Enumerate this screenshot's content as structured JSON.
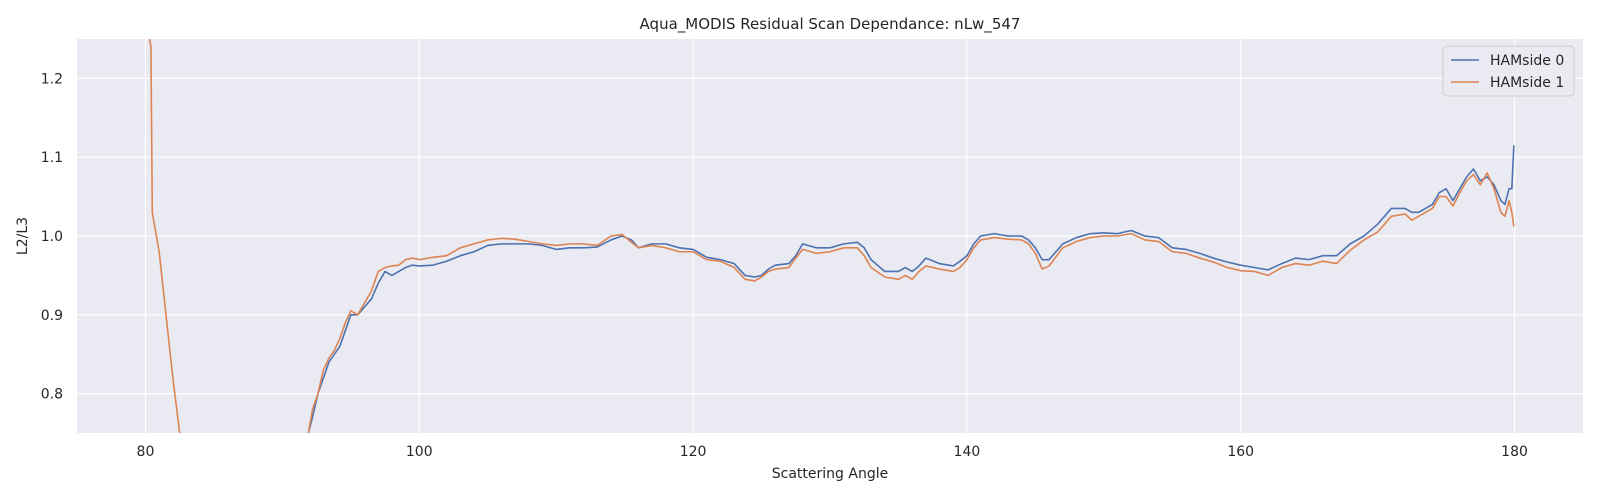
{
  "chart_data": {
    "type": "line",
    "title": "Aqua_MODIS Residual Scan Dependance: nLw_547",
    "xlabel": "Scattering Angle",
    "ylabel": "L2/L3",
    "xlim": [
      75,
      185
    ],
    "ylim": [
      0.75,
      1.25
    ],
    "xticks": [
      80,
      100,
      120,
      140,
      160,
      180
    ],
    "yticks": [
      0.8,
      0.9,
      1.0,
      1.1,
      1.2
    ],
    "xtick_labels": [
      "80",
      "100",
      "120",
      "140",
      "160",
      "180"
    ],
    "ytick_labels": [
      "0.8",
      "0.9",
      "1.0",
      "1.1",
      "1.2"
    ],
    "grid": true,
    "legend_position": "top-right",
    "background_color": "#eaeaf2",
    "grid_color": "#ffffff",
    "series": [
      {
        "name": "HAMside 0",
        "color": "#4c72b0",
        "points": [
          [
            91.9,
            0.75
          ],
          [
            92.2,
            0.77
          ],
          [
            92.6,
            0.8
          ],
          [
            93.0,
            0.82
          ],
          [
            93.4,
            0.84
          ],
          [
            93.8,
            0.85
          ],
          [
            94.2,
            0.86
          ],
          [
            94.6,
            0.88
          ],
          [
            95.0,
            0.9
          ],
          [
            95.5,
            0.9
          ],
          [
            96.0,
            0.91
          ],
          [
            96.5,
            0.92
          ],
          [
            97.0,
            0.94
          ],
          [
            97.5,
            0.955
          ],
          [
            98.0,
            0.95
          ],
          [
            98.5,
            0.955
          ],
          [
            99.0,
            0.96
          ],
          [
            99.5,
            0.963
          ],
          [
            100.0,
            0.962
          ],
          [
            101.0,
            0.963
          ],
          [
            102.0,
            0.968
          ],
          [
            103.0,
            0.975
          ],
          [
            104.0,
            0.98
          ],
          [
            105.0,
            0.988
          ],
          [
            106.0,
            0.99
          ],
          [
            107.0,
            0.99
          ],
          [
            108.0,
            0.99
          ],
          [
            109.0,
            0.988
          ],
          [
            110.0,
            0.983
          ],
          [
            111.0,
            0.985
          ],
          [
            112.0,
            0.985
          ],
          [
            113.0,
            0.986
          ],
          [
            114.0,
            0.995
          ],
          [
            114.8,
            1.0
          ],
          [
            115.5,
            0.995
          ],
          [
            116.0,
            0.985
          ],
          [
            117.0,
            0.99
          ],
          [
            118.0,
            0.99
          ],
          [
            119.0,
            0.985
          ],
          [
            120.0,
            0.983
          ],
          [
            121.0,
            0.973
          ],
          [
            122.0,
            0.97
          ],
          [
            123.0,
            0.965
          ],
          [
            123.8,
            0.95
          ],
          [
            124.5,
            0.948
          ],
          [
            125.0,
            0.95
          ],
          [
            125.5,
            0.958
          ],
          [
            126.0,
            0.963
          ],
          [
            127.0,
            0.965
          ],
          [
            127.5,
            0.975
          ],
          [
            128.0,
            0.99
          ],
          [
            129.0,
            0.985
          ],
          [
            130.0,
            0.985
          ],
          [
            131.0,
            0.99
          ],
          [
            132.0,
            0.992
          ],
          [
            132.5,
            0.985
          ],
          [
            133.0,
            0.97
          ],
          [
            134.0,
            0.955
          ],
          [
            135.0,
            0.955
          ],
          [
            135.5,
            0.96
          ],
          [
            136.0,
            0.955
          ],
          [
            136.5,
            0.962
          ],
          [
            137.0,
            0.972
          ],
          [
            138.0,
            0.965
          ],
          [
            139.0,
            0.962
          ],
          [
            139.5,
            0.968
          ],
          [
            140.0,
            0.975
          ],
          [
            140.5,
            0.99
          ],
          [
            141.0,
            1.0
          ],
          [
            142.0,
            1.003
          ],
          [
            143.0,
            1.0
          ],
          [
            144.0,
            1.0
          ],
          [
            144.5,
            0.995
          ],
          [
            145.0,
            0.985
          ],
          [
            145.5,
            0.97
          ],
          [
            146.0,
            0.97
          ],
          [
            147.0,
            0.99
          ],
          [
            148.0,
            0.998
          ],
          [
            149.0,
            1.003
          ],
          [
            150.0,
            1.004
          ],
          [
            151.0,
            1.003
          ],
          [
            152.0,
            1.007
          ],
          [
            153.0,
            1.0
          ],
          [
            154.0,
            0.998
          ],
          [
            155.0,
            0.985
          ],
          [
            156.0,
            0.983
          ],
          [
            157.0,
            0.978
          ],
          [
            158.0,
            0.972
          ],
          [
            159.0,
            0.967
          ],
          [
            160.0,
            0.963
          ],
          [
            161.0,
            0.96
          ],
          [
            162.0,
            0.957
          ],
          [
            163.0,
            0.965
          ],
          [
            164.0,
            0.972
          ],
          [
            165.0,
            0.97
          ],
          [
            166.0,
            0.975
          ],
          [
            167.0,
            0.975
          ],
          [
            168.0,
            0.99
          ],
          [
            169.0,
            1.0
          ],
          [
            170.0,
            1.015
          ],
          [
            171.0,
            1.035
          ],
          [
            172.0,
            1.035
          ],
          [
            172.5,
            1.03
          ],
          [
            173.0,
            1.03
          ],
          [
            174.0,
            1.04
          ],
          [
            174.5,
            1.055
          ],
          [
            175.0,
            1.06
          ],
          [
            175.5,
            1.045
          ],
          [
            176.0,
            1.06
          ],
          [
            176.5,
            1.075
          ],
          [
            177.0,
            1.085
          ],
          [
            177.5,
            1.07
          ],
          [
            178.0,
            1.075
          ],
          [
            178.5,
            1.065
          ],
          [
            179.0,
            1.045
          ],
          [
            179.3,
            1.04
          ],
          [
            179.6,
            1.06
          ],
          [
            179.8,
            1.06
          ],
          [
            179.95,
            1.115
          ]
        ]
      },
      {
        "name": "HAMside 1",
        "color": "#dd8452",
        "segments": [
          [
            [
              80.3,
              1.25
            ],
            [
              80.4,
              1.24
            ],
            [
              80.5,
              1.03
            ],
            [
              81.0,
              0.98
            ],
            [
              81.5,
              0.9
            ],
            [
              82.0,
              0.82
            ],
            [
              82.5,
              0.75
            ]
          ],
          [
            [
              91.9,
              0.75
            ],
            [
              92.2,
              0.78
            ],
            [
              92.6,
              0.8
            ],
            [
              93.0,
              0.83
            ],
            [
              93.4,
              0.845
            ],
            [
              93.8,
              0.855
            ],
            [
              94.2,
              0.87
            ],
            [
              94.6,
              0.89
            ],
            [
              95.0,
              0.905
            ],
            [
              95.5,
              0.9
            ],
            [
              96.0,
              0.915
            ],
            [
              96.5,
              0.93
            ],
            [
              97.0,
              0.955
            ],
            [
              97.5,
              0.96
            ],
            [
              98.0,
              0.962
            ],
            [
              98.5,
              0.963
            ],
            [
              99.0,
              0.97
            ],
            [
              99.5,
              0.972
            ],
            [
              100.0,
              0.97
            ],
            [
              101.0,
              0.973
            ],
            [
              102.0,
              0.975
            ],
            [
              103.0,
              0.985
            ],
            [
              104.0,
              0.99
            ],
            [
              105.0,
              0.995
            ],
            [
              106.0,
              0.997
            ],
            [
              107.0,
              0.996
            ],
            [
              108.0,
              0.993
            ],
            [
              109.0,
              0.99
            ],
            [
              110.0,
              0.988
            ],
            [
              111.0,
              0.99
            ],
            [
              112.0,
              0.99
            ],
            [
              113.0,
              0.988
            ],
            [
              114.0,
              1.0
            ],
            [
              114.8,
              1.002
            ],
            [
              115.5,
              0.992
            ],
            [
              116.0,
              0.985
            ],
            [
              117.0,
              0.988
            ],
            [
              118.0,
              0.985
            ],
            [
              119.0,
              0.98
            ],
            [
              120.0,
              0.98
            ],
            [
              121.0,
              0.97
            ],
            [
              122.0,
              0.968
            ],
            [
              123.0,
              0.96
            ],
            [
              123.8,
              0.945
            ],
            [
              124.5,
              0.943
            ],
            [
              125.0,
              0.948
            ],
            [
              125.5,
              0.955
            ],
            [
              126.0,
              0.958
            ],
            [
              127.0,
              0.96
            ],
            [
              127.5,
              0.972
            ],
            [
              128.0,
              0.983
            ],
            [
              129.0,
              0.978
            ],
            [
              130.0,
              0.98
            ],
            [
              131.0,
              0.985
            ],
            [
              132.0,
              0.985
            ],
            [
              132.5,
              0.975
            ],
            [
              133.0,
              0.96
            ],
            [
              134.0,
              0.948
            ],
            [
              135.0,
              0.945
            ],
            [
              135.5,
              0.95
            ],
            [
              136.0,
              0.945
            ],
            [
              136.5,
              0.955
            ],
            [
              137.0,
              0.962
            ],
            [
              138.0,
              0.958
            ],
            [
              139.0,
              0.955
            ],
            [
              139.5,
              0.96
            ],
            [
              140.0,
              0.97
            ],
            [
              140.5,
              0.985
            ],
            [
              141.0,
              0.995
            ],
            [
              142.0,
              0.998
            ],
            [
              143.0,
              0.996
            ],
            [
              144.0,
              0.995
            ],
            [
              144.5,
              0.99
            ],
            [
              145.0,
              0.978
            ],
            [
              145.5,
              0.958
            ],
            [
              146.0,
              0.962
            ],
            [
              147.0,
              0.985
            ],
            [
              148.0,
              0.993
            ],
            [
              149.0,
              0.998
            ],
            [
              150.0,
              1.0
            ],
            [
              151.0,
              1.0
            ],
            [
              152.0,
              1.003
            ],
            [
              153.0,
              0.995
            ],
            [
              154.0,
              0.993
            ],
            [
              155.0,
              0.98
            ],
            [
              156.0,
              0.978
            ],
            [
              157.0,
              0.972
            ],
            [
              158.0,
              0.967
            ],
            [
              159.0,
              0.96
            ],
            [
              160.0,
              0.956
            ],
            [
              161.0,
              0.955
            ],
            [
              162.0,
              0.95
            ],
            [
              163.0,
              0.96
            ],
            [
              164.0,
              0.965
            ],
            [
              165.0,
              0.963
            ],
            [
              166.0,
              0.968
            ],
            [
              167.0,
              0.965
            ],
            [
              168.0,
              0.982
            ],
            [
              169.0,
              0.995
            ],
            [
              170.0,
              1.005
            ],
            [
              171.0,
              1.025
            ],
            [
              172.0,
              1.028
            ],
            [
              172.5,
              1.02
            ],
            [
              173.0,
              1.025
            ],
            [
              174.0,
              1.035
            ],
            [
              174.5,
              1.05
            ],
            [
              175.0,
              1.05
            ],
            [
              175.5,
              1.038
            ],
            [
              176.0,
              1.055
            ],
            [
              176.5,
              1.07
            ],
            [
              177.0,
              1.078
            ],
            [
              177.5,
              1.065
            ],
            [
              178.0,
              1.08
            ],
            [
              178.5,
              1.06
            ],
            [
              179.0,
              1.03
            ],
            [
              179.3,
              1.025
            ],
            [
              179.6,
              1.045
            ],
            [
              179.8,
              1.03
            ],
            [
              179.95,
              1.012
            ]
          ]
        ]
      }
    ]
  }
}
